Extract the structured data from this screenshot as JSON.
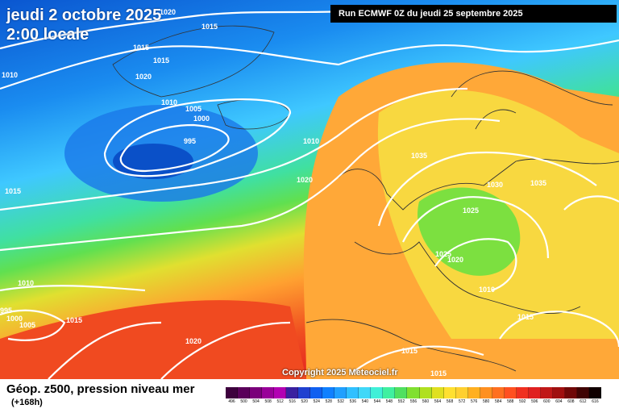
{
  "overlay": {
    "date": "jeudi 2 octobre 2025",
    "time": "2:00 locale",
    "run": "Run ECMWF 0Z du jeudi 25 septembre 2025",
    "copyright": "Copyright 2025 Meteociel.fr"
  },
  "footer": {
    "title": "Géop. z500, pression niveau mer",
    "subtitle": "(+168h)"
  },
  "isobar_labels": [
    "1020",
    "1015",
    "1015",
    "1015",
    "1020",
    "1010",
    "1005",
    "1000",
    "995",
    "1010",
    "1015",
    "1010",
    "1020",
    "1010",
    "995",
    "1000",
    "1005",
    "1015",
    "1020",
    "1035",
    "1030",
    "1035",
    "1025",
    "1025",
    "1020",
    "1010",
    "1015",
    "1015",
    "1015"
  ],
  "legend": {
    "values": [
      "496",
      "500",
      "504",
      "508",
      "512",
      "516",
      "520",
      "524",
      "528",
      "532",
      "536",
      "540",
      "544",
      "548",
      "552",
      "556",
      "560",
      "564",
      "568",
      "572",
      "576",
      "580",
      "584",
      "588",
      "592",
      "596",
      "600",
      "604",
      "608",
      "612",
      "616"
    ],
    "colors": [
      "#3d003d",
      "#5a005a",
      "#7a007a",
      "#990099",
      "#b300b3",
      "#3a20a0",
      "#2040d0",
      "#1060f0",
      "#1080ff",
      "#20a0ff",
      "#30c0ff",
      "#40d8f8",
      "#40f0d8",
      "#40f0a0",
      "#50e060",
      "#80e030",
      "#b0e020",
      "#e0e020",
      "#ffe030",
      "#ffd030",
      "#ffb020",
      "#ff9020",
      "#ff7020",
      "#ff5020",
      "#f03020",
      "#e02020",
      "#c01818",
      "#a01010",
      "#700808",
      "#400404",
      "#100000"
    ]
  },
  "colors": {
    "ocean_dark": "#0a5fd8",
    "ocean_light": "#3fc0ff",
    "green_band": "#30d060",
    "yellow_band": "#f0e030",
    "orange_band": "#ff9830",
    "red_band": "#f04020"
  }
}
